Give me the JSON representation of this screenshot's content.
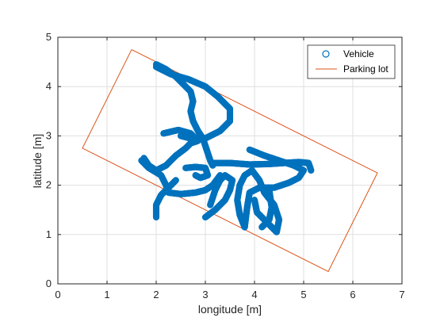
{
  "chart_data": {
    "type": "scatter",
    "title": "",
    "xlabel": "longitude [m]",
    "ylabel": "latitude [m]",
    "xlim": [
      0,
      7
    ],
    "ylim": [
      0,
      5
    ],
    "xticks": [
      "0",
      "1",
      "2",
      "3",
      "4",
      "5",
      "6",
      "7"
    ],
    "yticks": [
      "0",
      "1",
      "2",
      "3",
      "4",
      "5"
    ],
    "grid": true,
    "legend_position": "top-right",
    "series": [
      {
        "name": "Vehicle",
        "marker": "circle",
        "color": "#0072bd",
        "paths": [
          [
            [
              2.0,
              4.45
            ],
            [
              2.2,
              4.35
            ],
            [
              2.4,
              4.2
            ],
            [
              2.55,
              4.05
            ],
            [
              2.7,
              3.9
            ],
            [
              2.75,
              3.7
            ],
            [
              2.7,
              3.5
            ],
            [
              2.75,
              3.3
            ],
            [
              2.85,
              3.1
            ],
            [
              2.95,
              2.95
            ],
            [
              3.0,
              2.8
            ],
            [
              3.05,
              2.65
            ],
            [
              3.1,
              2.5
            ],
            [
              3.15,
              2.4
            ]
          ],
          [
            [
              2.0,
              4.4
            ],
            [
              2.3,
              4.25
            ],
            [
              2.65,
              4.15
            ],
            [
              3.0,
              4.0
            ],
            [
              3.25,
              3.8
            ],
            [
              3.5,
              3.55
            ],
            [
              3.5,
              3.3
            ],
            [
              3.3,
              3.1
            ],
            [
              3.0,
              2.95
            ],
            [
              2.7,
              2.95
            ],
            [
              2.5,
              3.0
            ]
          ],
          [
            [
              2.15,
              3.05
            ],
            [
              2.45,
              3.12
            ],
            [
              2.7,
              3.05
            ],
            [
              2.85,
              2.9
            ],
            [
              2.7,
              2.85
            ],
            [
              2.6,
              2.75
            ],
            [
              2.4,
              2.6
            ],
            [
              2.2,
              2.4
            ],
            [
              2.0,
              2.3
            ],
            [
              1.85,
              2.4
            ],
            [
              1.75,
              2.55
            ]
          ],
          [
            [
              1.7,
              2.5
            ],
            [
              1.85,
              2.35
            ],
            [
              2.1,
              2.2
            ],
            [
              2.2,
              2.0
            ],
            [
              2.25,
              1.85
            ],
            [
              2.5,
              1.82
            ],
            [
              2.8,
              1.85
            ],
            [
              3.0,
              1.9
            ],
            [
              3.15,
              2.0
            ],
            [
              3.3,
              2.2
            ]
          ],
          [
            [
              2.0,
              1.35
            ],
            [
              2.0,
              1.6
            ],
            [
              2.1,
              1.8
            ],
            [
              2.25,
              1.95
            ],
            [
              2.4,
              2.1
            ]
          ],
          [
            [
              3.0,
              1.35
            ],
            [
              3.2,
              1.5
            ],
            [
              3.4,
              1.7
            ],
            [
              3.5,
              1.9
            ],
            [
              3.55,
              2.1
            ],
            [
              3.4,
              2.2
            ],
            [
              3.3,
              2.1
            ],
            [
              3.2,
              1.9
            ],
            [
              3.1,
              1.6
            ]
          ],
          [
            [
              2.6,
              2.35
            ],
            [
              2.8,
              2.37
            ],
            [
              3.0,
              2.35
            ],
            [
              3.05,
              2.2
            ],
            [
              2.9,
              2.15
            ],
            [
              2.8,
              2.2
            ]
          ],
          [
            [
              3.15,
              2.45
            ],
            [
              3.5,
              2.45
            ],
            [
              3.9,
              2.42
            ],
            [
              4.3,
              2.43
            ],
            [
              4.6,
              2.45
            ],
            [
              4.9,
              2.47
            ],
            [
              5.1,
              2.45
            ],
            [
              5.15,
              2.3
            ]
          ],
          [
            [
              3.9,
              2.72
            ],
            [
              4.2,
              2.6
            ],
            [
              4.5,
              2.5
            ],
            [
              4.8,
              2.4
            ],
            [
              5.0,
              2.3
            ],
            [
              4.9,
              2.15
            ],
            [
              4.7,
              2.05
            ],
            [
              4.4,
              1.95
            ],
            [
              4.1,
              1.95
            ],
            [
              3.9,
              1.85
            ],
            [
              3.85,
              1.55
            ],
            [
              3.8,
              1.15
            ]
          ],
          [
            [
              3.8,
              1.15
            ],
            [
              3.7,
              1.4
            ],
            [
              3.65,
              1.7
            ],
            [
              3.7,
              2.0
            ],
            [
              3.8,
              2.2
            ],
            [
              3.95,
              2.3
            ],
            [
              4.1,
              2.1
            ],
            [
              4.2,
              1.85
            ],
            [
              4.4,
              1.6
            ],
            [
              4.5,
              1.3
            ],
            [
              4.45,
              1.05
            ],
            [
              4.25,
              1.25
            ],
            [
              4.05,
              1.45
            ],
            [
              4.0,
              1.7
            ]
          ],
          [
            [
              4.3,
              1.9
            ],
            [
              4.35,
              1.55
            ],
            [
              4.3,
              1.3
            ],
            [
              4.15,
              1.15
            ]
          ]
        ]
      },
      {
        "name": "Parking lot",
        "type": "line",
        "color": "#d95319",
        "points": [
          [
            1.5,
            4.75
          ],
          [
            6.5,
            2.25
          ],
          [
            5.5,
            0.25
          ],
          [
            0.5,
            2.75
          ],
          [
            1.5,
            4.75
          ]
        ]
      }
    ]
  }
}
